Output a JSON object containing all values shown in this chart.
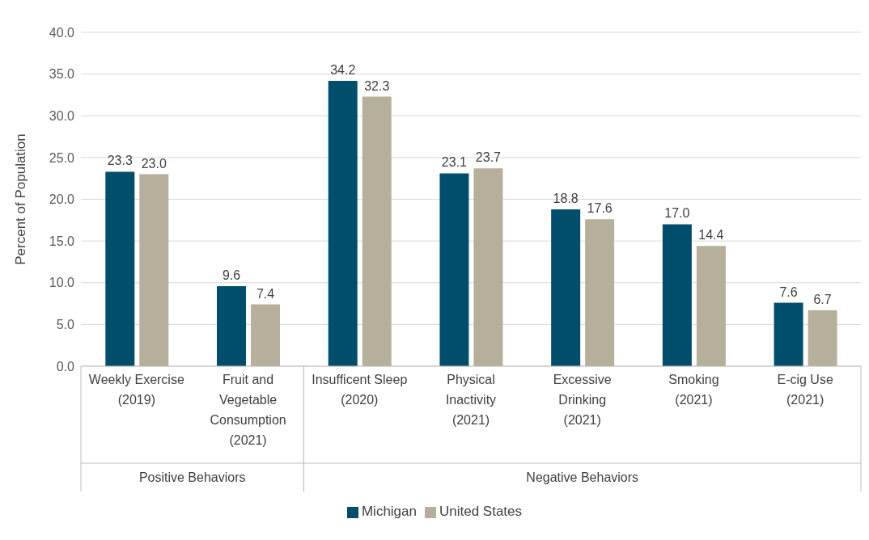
{
  "chart_data": {
    "type": "bar",
    "ylabel": "Percent of Population",
    "categories": [
      "Weekly Exercise (2019)",
      "Fruit and Vegetable Consumption (2021)",
      "Insufficent Sleep (2020)",
      "Physical Inactivity (2021)",
      "Excessive Drinking (2021)",
      "Smoking (2021)",
      "E-cig Use (2021)"
    ],
    "series": [
      {
        "name": "Michigan",
        "color": "#004e6c",
        "values": [
          23.3,
          9.6,
          34.2,
          23.1,
          18.8,
          17.0,
          7.6
        ],
        "value_labels": [
          "23.3",
          "9.6",
          "34.2",
          "23.1",
          "18.8",
          "17.0",
          "7.6"
        ]
      },
      {
        "name": "United States",
        "color": "#b6af9c",
        "values": [
          23.0,
          7.4,
          32.3,
          23.7,
          17.6,
          14.4,
          6.7
        ],
        "value_labels": [
          "23.0",
          "7.4",
          "32.3",
          "23.7",
          "17.6",
          "14.4",
          "6.7"
        ]
      }
    ],
    "ylim": [
      0,
      40
    ],
    "yticks": [
      {
        "value": 0,
        "label": "0.0"
      },
      {
        "value": 5,
        "label": "5.0"
      },
      {
        "value": 10,
        "label": "10.0"
      },
      {
        "value": 15,
        "label": "15.0"
      },
      {
        "value": 20,
        "label": "20.0"
      },
      {
        "value": 25,
        "label": "25.0"
      },
      {
        "value": 30,
        "label": "30.0"
      },
      {
        "value": 35,
        "label": "35.0"
      },
      {
        "value": 40,
        "label": "40.0"
      }
    ],
    "grid": "y",
    "legend": "bottom",
    "annotations": [
      "Positive Behaviors",
      "Negative Behaviors"
    ]
  }
}
